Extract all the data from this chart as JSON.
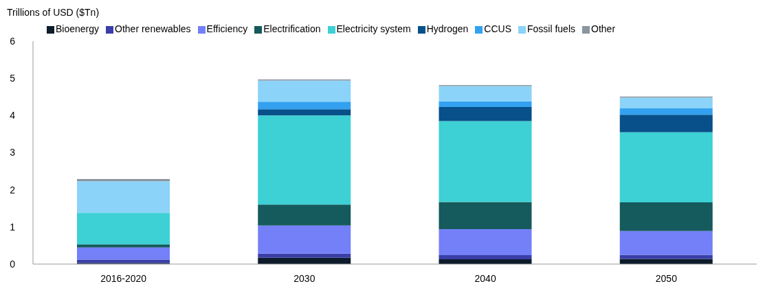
{
  "chart_data": {
    "type": "bar",
    "stacked": true,
    "ylabel": "Trillions of USD ($Tn)",
    "categories": [
      "2016-2020",
      "2030",
      "2040",
      "2050"
    ],
    "ylim": [
      0,
      6
    ],
    "yticks": [
      0,
      1,
      2,
      3,
      4,
      5,
      6
    ],
    "grid": false,
    "legend": "top",
    "series": [
      {
        "name": "Bioenergy",
        "color": "#0d1b2a",
        "values": [
          0.03,
          0.17,
          0.13,
          0.14
        ]
      },
      {
        "name": "Other renewables",
        "color": "#3a3fa8",
        "values": [
          0.09,
          0.11,
          0.11,
          0.11
        ]
      },
      {
        "name": "Efficiency",
        "color": "#7380f8",
        "values": [
          0.33,
          0.76,
          0.7,
          0.64
        ]
      },
      {
        "name": "Electrification",
        "color": "#155a5c",
        "values": [
          0.08,
          0.56,
          0.73,
          0.77
        ]
      },
      {
        "name": "Electricity system",
        "color": "#3dd0d4",
        "values": [
          0.85,
          2.4,
          2.18,
          1.89
        ]
      },
      {
        "name": "Hydrogen",
        "color": "#07508a",
        "values": [
          0,
          0.17,
          0.38,
          0.47
        ]
      },
      {
        "name": "CCUS",
        "color": "#33a1f0",
        "values": [
          0,
          0.2,
          0.15,
          0.17
        ]
      },
      {
        "name": "Fossil fuels",
        "color": "#8bd3f8",
        "values": [
          0.85,
          0.57,
          0.41,
          0.29
        ]
      },
      {
        "name": "Other",
        "color": "#8a96a0",
        "values": [
          0.06,
          0.03,
          0.03,
          0.03
        ]
      }
    ]
  }
}
